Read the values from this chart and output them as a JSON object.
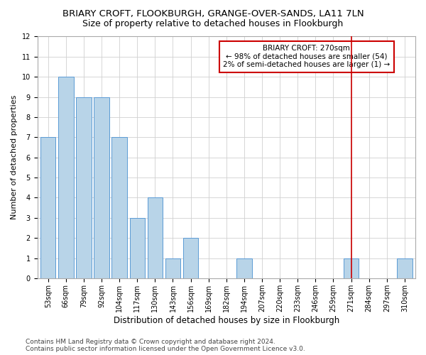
{
  "title": "BRIARY CROFT, FLOOKBURGH, GRANGE-OVER-SANDS, LA11 7LN",
  "subtitle": "Size of property relative to detached houses in Flookburgh",
  "xlabel": "Distribution of detached houses by size in Flookburgh",
  "ylabel": "Number of detached properties",
  "categories": [
    "53sqm",
    "66sqm",
    "79sqm",
    "92sqm",
    "104sqm",
    "117sqm",
    "130sqm",
    "143sqm",
    "156sqm",
    "169sqm",
    "182sqm",
    "194sqm",
    "207sqm",
    "220sqm",
    "233sqm",
    "246sqm",
    "259sqm",
    "271sqm",
    "284sqm",
    "297sqm",
    "310sqm"
  ],
  "values": [
    7,
    10,
    9,
    9,
    7,
    3,
    4,
    1,
    2,
    0,
    0,
    1,
    0,
    0,
    0,
    0,
    0,
    1,
    0,
    0,
    1
  ],
  "bar_color": "#b8d4e8",
  "bar_edge_color": "#5b9bd5",
  "grid_color": "#d0d0d0",
  "vline_x_index": 17,
  "vline_color": "#cc0000",
  "annotation_text": "BRIARY CROFT: 270sqm\n← 98% of detached houses are smaller (54)\n2% of semi-detached houses are larger (1) →",
  "annotation_box_color": "#cc0000",
  "ylim": [
    0,
    12
  ],
  "yticks": [
    0,
    1,
    2,
    3,
    4,
    5,
    6,
    7,
    8,
    9,
    10,
    11,
    12
  ],
  "footer_text": "Contains HM Land Registry data © Crown copyright and database right 2024.\nContains public sector information licensed under the Open Government Licence v3.0.",
  "title_fontsize": 9.5,
  "subtitle_fontsize": 9,
  "xlabel_fontsize": 8.5,
  "ylabel_fontsize": 8,
  "tick_fontsize": 7,
  "footer_fontsize": 6.5,
  "bar_width": 0.85,
  "annotation_fontsize": 7.5
}
